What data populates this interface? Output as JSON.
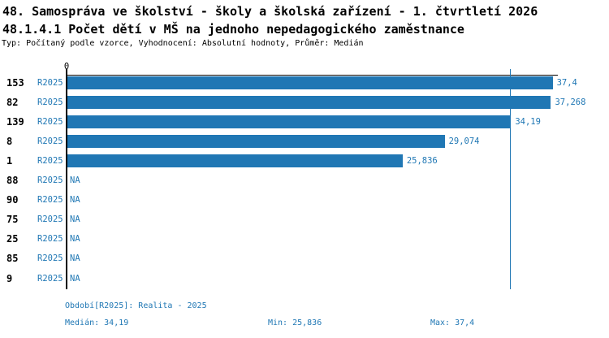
{
  "header": {
    "title": "48. Samospráva ve školství - školy a školská zařízení - 1. čtvrtletí 2026",
    "subtitle": "48.1.4.1 Počet dětí v MŠ na jednoho nepedagogického zaměstnance",
    "meta": "Typ: Počítaný podle vzorce, Vyhodnocení: Absolutní hodnoty, Průměr: Medián"
  },
  "colors": {
    "bar": "#2077b4",
    "text_blue": "#1f77b4",
    "axis": "#000000"
  },
  "chart_data": {
    "type": "bar",
    "orientation": "horizontal",
    "title": "48.1.4.1 Počet dětí v MŠ na jednoho nepedagogického zaměstnance",
    "axis_zero_label": "0",
    "xlim": [
      0,
      37.8
    ],
    "grid": false,
    "median_value": 34.19,
    "min_value": 25.836,
    "max_value": 37.4,
    "rows": [
      {
        "id": "153",
        "period": "R2025",
        "value": 37.4,
        "value_label": "37,4"
      },
      {
        "id": "82",
        "period": "R2025",
        "value": 37.268,
        "value_label": "37,268"
      },
      {
        "id": "139",
        "period": "R2025",
        "value": 34.19,
        "value_label": "34,19"
      },
      {
        "id": "8",
        "period": "R2025",
        "value": 29.074,
        "value_label": "29,074"
      },
      {
        "id": "1",
        "period": "R2025",
        "value": 25.836,
        "value_label": "25,836"
      },
      {
        "id": "88",
        "period": "R2025",
        "value": null,
        "value_label": "NA"
      },
      {
        "id": "90",
        "period": "R2025",
        "value": null,
        "value_label": "NA"
      },
      {
        "id": "75",
        "period": "R2025",
        "value": null,
        "value_label": "NA"
      },
      {
        "id": "25",
        "period": "R2025",
        "value": null,
        "value_label": "NA"
      },
      {
        "id": "85",
        "period": "R2025",
        "value": null,
        "value_label": "NA"
      },
      {
        "id": "9",
        "period": "R2025",
        "value": null,
        "value_label": "NA"
      }
    ]
  },
  "footer": {
    "period_line": "Období[R2025]: Realita - 2025",
    "median_label": "Medián: 34,19",
    "min_label": "Min: 25,836",
    "max_label": "Max: 37,4"
  }
}
